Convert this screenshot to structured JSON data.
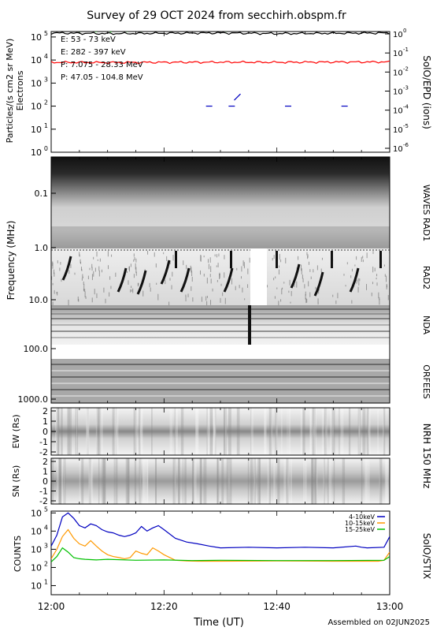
{
  "title": "Survey of 29 OCT 2024 from secchirh.obspm.fr",
  "footer": "Assembled on 02JUN2025",
  "time_axis": {
    "label": "Time (UT)",
    "ticks": [
      "12:00",
      "12:20",
      "12:40",
      "13:00"
    ]
  },
  "chart_data": [
    {
      "panel": "particles",
      "type": "line",
      "ylabel": "Particles/(s cm2 sr MeV)",
      "ylabel2": "Electrons",
      "right_label": "SolO/EPD (ions)",
      "y_scale": "log",
      "ylim": [
        1,
        100000
      ],
      "y_ticks": [
        "10",
        "10",
        "10",
        "10",
        "10",
        "10"
      ],
      "y_tick_exps": [
        "5",
        "4",
        "3",
        "2",
        "1",
        "0"
      ],
      "y2_ticks": [
        "10",
        "10",
        "10",
        "10",
        "10",
        "10",
        "10"
      ],
      "y2_tick_exps": [
        "0",
        "-1",
        "-2",
        "-3",
        "-4",
        "-5",
        "-6"
      ],
      "series": [
        {
          "name": "E: 53 - 73 keV",
          "color": "#00c000",
          "x_minutes": [
            0,
            10,
            20,
            30,
            40,
            50,
            60
          ],
          "values": [
            200000,
            190000,
            200000,
            195000,
            205000,
            200000,
            210000
          ]
        },
        {
          "name": "E: 282 - 397 keV",
          "color": "#ff0000",
          "x_minutes": [
            0,
            10,
            20,
            30,
            40,
            50,
            60
          ],
          "values": [
            8000,
            7800,
            8000,
            8100,
            8000,
            8200,
            8300
          ]
        },
        {
          "name": "P: 7.075 - 28.33 MeV",
          "color": "#000000",
          "x_minutes": [
            0,
            10,
            20,
            30,
            40,
            50,
            60
          ],
          "values": [
            150000,
            140000,
            145000,
            150000,
            140000,
            145000,
            150000
          ]
        },
        {
          "name": "P: 47.05 - 104.8 MeV",
          "color": "#0000c0",
          "x_minutes": [
            28,
            32,
            33,
            42,
            52
          ],
          "values": [
            100,
            100,
            180,
            100,
            100
          ]
        }
      ]
    },
    {
      "panel": "radio-spectrogram",
      "type": "heatmap",
      "ylabel": "Frequency (MHz)",
      "y_ticks": [
        "0.1",
        "1.0",
        "10.0",
        "100.0",
        "1000.0"
      ],
      "instruments": [
        "WAVES RAD1",
        "RAD2",
        "NDA",
        "ORFEES"
      ]
    },
    {
      "panel": "nrh-ew",
      "type": "heatmap",
      "ylabel": "EW (Rs)",
      "right_label": "NRH 150 MHz",
      "y_ticks": [
        "2",
        "1",
        "0",
        "-1",
        "-2"
      ]
    },
    {
      "panel": "nrh-sn",
      "type": "heatmap",
      "ylabel": "SN (Rs)",
      "y_ticks": [
        "2",
        "1",
        "0",
        "-1",
        "-2"
      ]
    },
    {
      "panel": "stix",
      "type": "line",
      "ylabel": "COUNTS",
      "right_label": "SolO/STIX",
      "y_scale": "log",
      "ylim": [
        10,
        100000
      ],
      "y_ticks": [
        "10",
        "10",
        "10",
        "10",
        "10"
      ],
      "y_tick_exps": [
        "5",
        "4",
        "3",
        "2",
        "1"
      ],
      "series": [
        {
          "name": "4-10keV",
          "color": "#0000c0",
          "x_minutes": [
            0,
            1,
            2,
            3,
            4,
            5,
            6,
            7,
            8,
            9,
            10,
            11,
            12,
            13,
            14,
            15,
            16,
            17,
            18,
            19,
            20,
            22,
            24,
            26,
            28,
            30,
            35,
            40,
            45,
            50,
            54,
            55,
            56,
            59,
            60
          ],
          "values": [
            1500,
            6000,
            60000,
            100000,
            50000,
            20000,
            15000,
            25000,
            20000,
            12000,
            9000,
            8000,
            6000,
            5000,
            6000,
            8000,
            18000,
            10000,
            15000,
            20000,
            12000,
            4000,
            2500,
            2000,
            1500,
            1200,
            1300,
            1200,
            1300,
            1200,
            1500,
            1300,
            1200,
            1300,
            5000
          ]
        },
        {
          "name": "10-15keV",
          "color": "#ff9900",
          "x_minutes": [
            0,
            1,
            2,
            3,
            4,
            5,
            6,
            7,
            8,
            9,
            10,
            11,
            12,
            13,
            14,
            15,
            16,
            17,
            18,
            19,
            20,
            22,
            24,
            26,
            30,
            40,
            50,
            58,
            59,
            60
          ],
          "values": [
            300,
            1000,
            5000,
            12000,
            4000,
            2000,
            1500,
            3000,
            1500,
            800,
            500,
            400,
            350,
            300,
            350,
            800,
            600,
            500,
            1200,
            800,
            500,
            250,
            230,
            220,
            220,
            230,
            220,
            220,
            250,
            700
          ]
        },
        {
          "name": "15-25keV",
          "color": "#00c000",
          "x_minutes": [
            0,
            1,
            2,
            3,
            4,
            5,
            6,
            8,
            10,
            15,
            20,
            25,
            30,
            40,
            50,
            59,
            60
          ],
          "values": [
            200,
            400,
            1200,
            700,
            350,
            300,
            280,
            260,
            280,
            250,
            260,
            240,
            250,
            240,
            240,
            250,
            400
          ]
        }
      ]
    }
  ]
}
